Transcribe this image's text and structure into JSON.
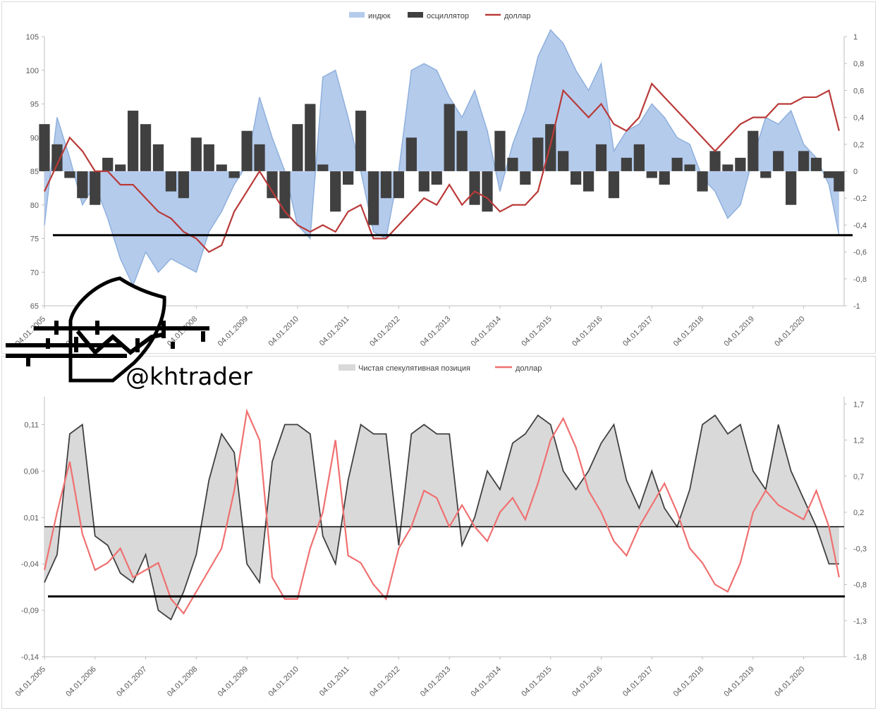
{
  "watermark": {
    "handle": "@khtrader"
  },
  "chart_data": [
    {
      "type": "area",
      "legend": [
        "индюк",
        "осциллятор",
        "доллар"
      ],
      "colors": {
        "индюк": "#b4cbec",
        "индюк_line": "#8fb0dc",
        "осциллятор": "#404040",
        "доллар": "#b93a38"
      },
      "ylim_left": [
        65,
        108
      ],
      "y_ticks_left": [
        "65",
        "70",
        "75",
        "80",
        "85",
        "90",
        "95",
        "100",
        "105"
      ],
      "ylim_right": [
        -1,
        1
      ],
      "y_ticks_right": [
        "-1",
        "-0,8",
        "-0,6",
        "-0,4",
        "-0,2",
        "0",
        "0,2",
        "0,4",
        "0,6",
        "0,8",
        "1"
      ],
      "x_ticks": [
        "04.01.2005",
        "04.01.2006",
        "04.01.2007",
        "04.01.2008",
        "04.01.2009",
        "04.01.2010",
        "04.01.2011",
        "04.01.2012",
        "04.01.2013",
        "04.01.2014",
        "04.01.2015",
        "04.01.2016",
        "04.01.2017",
        "04.01.2018",
        "04.01.2019",
        "04.01.2020"
      ],
      "x": [
        2005.0,
        2005.25,
        2005.5,
        2005.75,
        2006.0,
        2006.25,
        2006.5,
        2006.75,
        2007.0,
        2007.25,
        2007.5,
        2007.75,
        2008.0,
        2008.25,
        2008.5,
        2008.75,
        2009.0,
        2009.25,
        2009.5,
        2009.75,
        2010.0,
        2010.25,
        2010.5,
        2010.75,
        2011.0,
        2011.25,
        2011.5,
        2011.75,
        2012.0,
        2012.25,
        2012.5,
        2012.75,
        2013.0,
        2013.25,
        2013.5,
        2013.75,
        2014.0,
        2014.25,
        2014.5,
        2014.75,
        2015.0,
        2015.25,
        2015.5,
        2015.75,
        2016.0,
        2016.25,
        2016.5,
        2016.75,
        2017.0,
        2017.25,
        2017.5,
        2017.75,
        2018.0,
        2018.25,
        2018.5,
        2018.75,
        2019.0,
        2019.25,
        2019.5,
        2019.75,
        2020.0,
        2020.25,
        2020.5,
        2020.7
      ],
      "series": [
        {
          "name": "индюк",
          "axis": "left",
          "values": [
            77,
            93,
            87,
            80,
            83,
            78,
            72,
            68,
            73,
            70,
            72,
            71,
            70,
            76,
            79,
            83,
            86,
            96,
            90,
            85,
            77,
            75,
            99,
            100,
            93,
            85,
            76,
            75,
            85,
            100,
            101,
            100,
            96,
            93,
            97,
            91,
            82,
            89,
            94,
            102,
            106,
            104,
            100,
            97,
            101,
            88,
            91,
            92,
            95,
            93,
            90,
            89,
            84,
            82,
            78,
            80,
            87,
            93,
            92,
            94,
            89,
            87,
            83,
            75.5
          ]
        },
        {
          "name": "осциллятор",
          "axis": "right",
          "values": [
            0.35,
            0.2,
            -0.05,
            -0.2,
            -0.25,
            0.1,
            0.05,
            0.45,
            0.35,
            0.2,
            -0.15,
            -0.2,
            0.25,
            0.2,
            0.05,
            -0.05,
            0.3,
            0.2,
            -0.2,
            -0.35,
            0.35,
            0.5,
            0.05,
            -0.3,
            -0.1,
            0.45,
            -0.4,
            -0.2,
            -0.2,
            0.25,
            -0.15,
            -0.1,
            0.5,
            0.3,
            -0.25,
            -0.3,
            0.3,
            0.1,
            -0.1,
            0.25,
            0.35,
            0.15,
            -0.1,
            -0.15,
            0.2,
            -0.2,
            0.1,
            0.2,
            -0.05,
            -0.1,
            0.1,
            0.05,
            -0.15,
            0.15,
            0.05,
            0.1,
            0.3,
            -0.05,
            0.15,
            -0.25,
            0.15,
            0.1,
            -0.05,
            -0.15
          ]
        },
        {
          "name": "доллар",
          "axis": "right",
          "values": [
            -0.15,
            0.05,
            0.25,
            0.15,
            0.0,
            0.0,
            -0.1,
            -0.1,
            -0.2,
            -0.3,
            -0.35,
            -0.45,
            -0.5,
            -0.6,
            -0.55,
            -0.3,
            -0.15,
            0.0,
            -0.15,
            -0.3,
            -0.4,
            -0.45,
            -0.4,
            -0.45,
            -0.3,
            -0.25,
            -0.5,
            -0.5,
            -0.4,
            -0.3,
            -0.2,
            -0.25,
            -0.1,
            -0.25,
            -0.15,
            -0.2,
            -0.3,
            -0.25,
            -0.25,
            -0.15,
            0.2,
            0.6,
            0.5,
            0.4,
            0.5,
            0.35,
            0.3,
            0.4,
            0.65,
            0.55,
            0.45,
            0.35,
            0.25,
            0.15,
            0.25,
            0.35,
            0.4,
            0.4,
            0.5,
            0.5,
            0.55,
            0.55,
            0.6,
            0.3
          ]
        }
      ],
      "reference_line_left": 75.5
    },
    {
      "type": "area",
      "legend": [
        "Чистая спекулятивная позиция",
        "доллар"
      ],
      "colors": {
        "Чистая спекулятивная позиция": "#d9d9d9",
        "Чистая спекулятивная позиция_line": "#404040",
        "доллар": "#f07070"
      },
      "ylim_left": [
        -0.14,
        0.14
      ],
      "y_ticks_left": [
        "-0,14",
        "-0,09",
        "-0,04",
        "0,01",
        "0,06",
        "0,11"
      ],
      "ylim_right": [
        -1.8,
        1.8
      ],
      "y_ticks_right": [
        "-1,8",
        "-1,3",
        "-0,8",
        "-0,3",
        "0,2",
        "0,7",
        "1,2",
        "1,7"
      ],
      "x_ticks": [
        "04.01.2005",
        "04.01.2006",
        "04.01.2007",
        "04.01.2008",
        "04.01.2009",
        "04.01.2010",
        "04.01.2011",
        "04.01.2012",
        "04.01.2013",
        "04.01.2014",
        "04.01.2015",
        "04.01.2016",
        "04.01.2017",
        "04.01.2018",
        "04.01.2019",
        "04.01.2020"
      ],
      "x": [
        2005.0,
        2005.25,
        2005.5,
        2005.75,
        2006.0,
        2006.25,
        2006.5,
        2006.75,
        2007.0,
        2007.25,
        2007.5,
        2007.75,
        2008.0,
        2008.25,
        2008.5,
        2008.75,
        2009.0,
        2009.25,
        2009.5,
        2009.75,
        2010.0,
        2010.25,
        2010.5,
        2010.75,
        2011.0,
        2011.25,
        2011.5,
        2011.75,
        2012.0,
        2012.25,
        2012.5,
        2012.75,
        2013.0,
        2013.25,
        2013.5,
        2013.75,
        2014.0,
        2014.25,
        2014.5,
        2014.75,
        2015.0,
        2015.25,
        2015.5,
        2015.75,
        2016.0,
        2016.25,
        2016.5,
        2016.75,
        2017.0,
        2017.25,
        2017.5,
        2017.75,
        2018.0,
        2018.25,
        2018.5,
        2018.75,
        2019.0,
        2019.25,
        2019.5,
        2019.75,
        2020.0,
        2020.25,
        2020.5,
        2020.7
      ],
      "series": [
        {
          "name": "Чистая спекулятивная позиция",
          "axis": "left",
          "values": [
            -0.06,
            -0.03,
            0.1,
            0.11,
            -0.01,
            -0.02,
            -0.05,
            -0.06,
            -0.03,
            -0.09,
            -0.1,
            -0.07,
            -0.03,
            0.05,
            0.1,
            0.08,
            -0.04,
            -0.06,
            0.07,
            0.11,
            0.11,
            0.1,
            -0.01,
            -0.04,
            0.05,
            0.11,
            0.1,
            0.1,
            -0.02,
            0.1,
            0.11,
            0.1,
            0.1,
            -0.02,
            0.01,
            0.06,
            0.04,
            0.09,
            0.1,
            0.12,
            0.11,
            0.06,
            0.04,
            0.06,
            0.09,
            0.11,
            0.05,
            0.02,
            0.06,
            0.02,
            0.0,
            0.04,
            0.11,
            0.12,
            0.1,
            0.11,
            0.06,
            0.04,
            0.11,
            0.06,
            0.03,
            0.0,
            -0.04,
            -0.04
          ]
        },
        {
          "name": "доллар",
          "axis": "right",
          "values": [
            -0.6,
            0.2,
            0.9,
            -0.1,
            -0.6,
            -0.5,
            -0.3,
            -0.7,
            -0.6,
            -0.5,
            -1.0,
            -1.2,
            -0.9,
            -0.6,
            -0.3,
            0.5,
            1.6,
            1.2,
            -0.7,
            -1.0,
            -1.0,
            -0.3,
            0.2,
            1.2,
            -0.4,
            -0.5,
            -0.8,
            -1.0,
            -0.3,
            0.0,
            0.5,
            0.4,
            0.0,
            0.3,
            0.0,
            -0.2,
            0.2,
            0.4,
            0.1,
            0.6,
            1.2,
            1.5,
            1.1,
            0.5,
            0.2,
            -0.2,
            -0.4,
            0.0,
            0.3,
            0.6,
            0.2,
            -0.3,
            -0.5,
            -0.8,
            -0.9,
            -0.5,
            0.2,
            0.5,
            0.3,
            0.2,
            0.1,
            0.5,
            0.0,
            -0.7
          ]
        }
      ],
      "reference_line_left": -0.075
    }
  ]
}
